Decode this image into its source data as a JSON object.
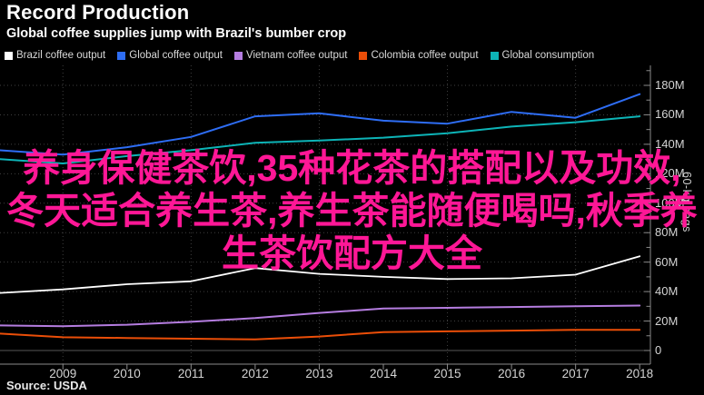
{
  "header": {
    "title": "Record Production",
    "subtitle": "Global coffee supplies jump with Brazil's bumber crop"
  },
  "watermark": {
    "color": "#ff1796",
    "lines": [
      "养身保健茶饮,35种花茶的搭配以及功效,",
      "冬天适合养生茶,养生茶能随便喝吗,秋季养",
      "生茶饮配方大全"
    ]
  },
  "source": "Source: USDA",
  "colors": {
    "background": "#000000",
    "axis": "#8a8a8a",
    "grid_dotted": "#3f3f3f",
    "zero_line": "#565656",
    "tick_text": "#d4d4d4"
  },
  "chart_data": {
    "type": "line",
    "x": [
      2008,
      2009,
      2010,
      2011,
      2012,
      2013,
      2014,
      2015,
      2016,
      2017,
      2018
    ],
    "x_tick_labels": [
      "2009",
      "2010",
      "2011",
      "2012",
      "2013",
      "2014",
      "2015",
      "2016",
      "2017",
      "2018"
    ],
    "y_axis": {
      "title": "60-kg bags",
      "unit": "60-kg bags (millions)",
      "tick_values": [
        0,
        20,
        40,
        60,
        80,
        100,
        120,
        140,
        160,
        180
      ],
      "tick_labels": [
        "0",
        "20M",
        "40M",
        "60M",
        "80M",
        "100M",
        "120M",
        "140M",
        "160M",
        "180M"
      ],
      "minor_tick_values": [
        10,
        30,
        50,
        70,
        90,
        110,
        130,
        150,
        170,
        190
      ],
      "range": [
        0,
        190
      ]
    },
    "grid": {
      "horizontal_values": [
        20,
        40,
        60,
        80,
        100,
        120,
        140,
        160,
        180
      ],
      "vertical_years": [
        2009,
        2011,
        2013,
        2015,
        2017
      ],
      "style": "dotted"
    },
    "legend_position": "top",
    "series": [
      {
        "name": "Brazil coffee output",
        "color": "#ffffff",
        "values": [
          39,
          41.5,
          45,
          47,
          56,
          52,
          50,
          48.5,
          49,
          51.5,
          64
        ]
      },
      {
        "name": "Global coffee output",
        "color": "#2e6df4",
        "values": [
          136,
          133,
          138,
          145,
          159,
          161,
          156,
          154,
          162,
          158,
          174
        ]
      },
      {
        "name": "Vietnam coffee output",
        "color": "#b57de0",
        "values": [
          17,
          16.5,
          17.5,
          19.5,
          22,
          25.5,
          28.5,
          29,
          29.5,
          30,
          30.5
        ]
      },
      {
        "name": "Colombia coffee output",
        "color": "#eb4e08",
        "values": [
          11.5,
          9,
          8.5,
          8,
          7.5,
          9.5,
          12.5,
          13,
          13.5,
          14,
          14
        ]
      },
      {
        "name": "Global consumption",
        "color": "#0db4b7",
        "values": [
          130,
          127,
          132,
          136,
          141,
          142.5,
          144.5,
          147.5,
          152,
          155,
          159
        ]
      }
    ]
  }
}
